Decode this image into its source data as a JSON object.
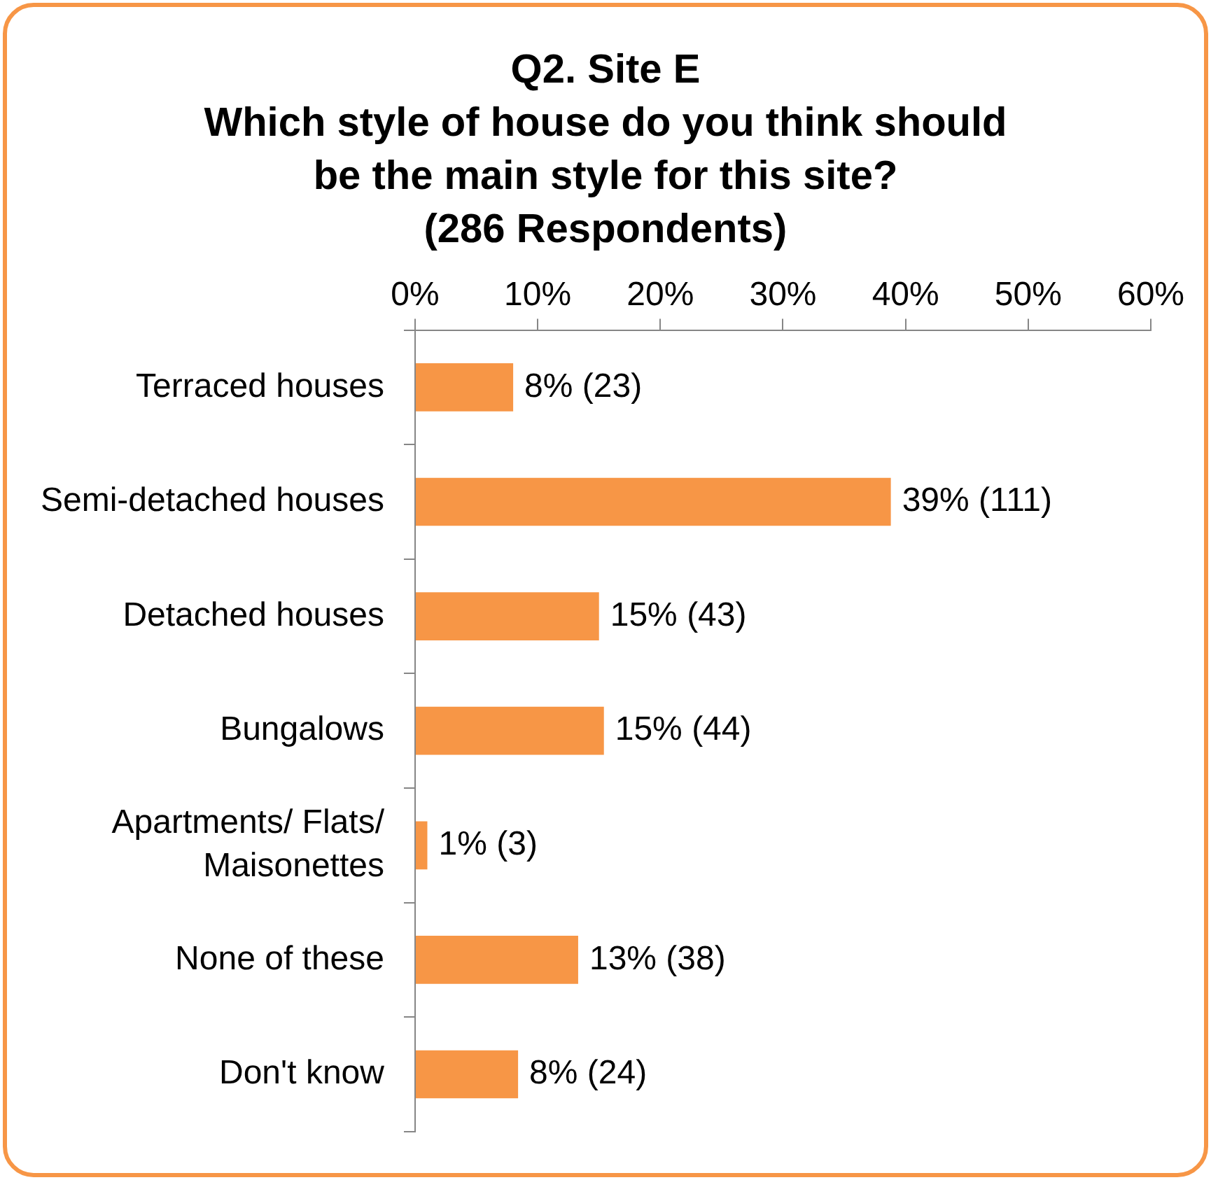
{
  "chart_data": {
    "type": "bar",
    "orientation": "horizontal",
    "title": "Q2. Site E\nWhich style of house do you think should\nbe the main style for this site?\n(286 Respondents)",
    "categories": [
      "Terraced houses",
      "Semi-detached houses",
      "Detached houses",
      "Bungalows",
      "Apartments/ Flats/ Maisonettes",
      "None of these",
      "Don't know"
    ],
    "values": [
      8.0,
      38.8,
      15.0,
      15.4,
      1.0,
      13.3,
      8.4
    ],
    "value_labels": [
      "8% (23)",
      "39% (111)",
      "15% (43)",
      "15% (44)",
      "1% (3)",
      "13% (38)",
      "8% (24)"
    ],
    "color": "#f79646",
    "xlim": [
      0,
      60
    ],
    "xticks": [
      {
        "value": 0,
        "label": "0%"
      },
      {
        "value": 10,
        "label": "10%"
      },
      {
        "value": 20,
        "label": "20%"
      },
      {
        "value": 30,
        "label": "30%"
      },
      {
        "value": 40,
        "label": "40%"
      },
      {
        "value": 50,
        "label": "50%"
      },
      {
        "value": 60,
        "label": "60%"
      }
    ]
  }
}
